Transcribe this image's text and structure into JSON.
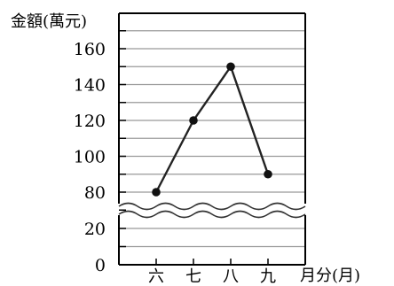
{
  "chart_data": {
    "type": "line",
    "title": "",
    "ylabel": "金額(萬元)",
    "xlabel": "月分(月)",
    "categories": [
      "六",
      "七",
      "八",
      "九"
    ],
    "values": [
      80,
      120,
      150,
      90
    ],
    "ylim_lower": [
      0,
      30
    ],
    "ylim_upper": [
      70,
      170
    ],
    "yticks_lower": [
      0,
      20
    ],
    "yticks_upper": [
      80,
      100,
      120,
      140,
      160
    ],
    "axis_break": true,
    "grid": true,
    "marker": "circle",
    "line_color": "#222222",
    "grid_color": "#999999"
  }
}
